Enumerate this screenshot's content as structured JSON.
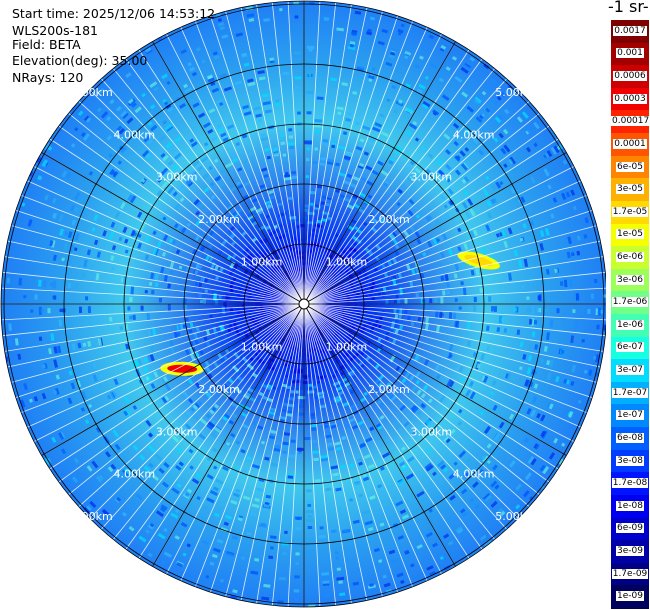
{
  "header": {
    "start_time": "Start time: 2025/12/06 14:53:12",
    "instrument": "WLS200s-181",
    "field": "Field: BETA",
    "elevation": "Elevation(deg): 35.00",
    "nrays": "NRays: 120"
  },
  "colorbar": {
    "title": "-1 sr-",
    "labels": [
      "0.0017",
      "0.001",
      "0.0006",
      "0.0003",
      "0.00017",
      "0.0001",
      "6e-05",
      "3e-05",
      "1.7e-05",
      "1e-05",
      "6e-06",
      "3e-06",
      "1.7e-06",
      "1e-06",
      "6e-07",
      "3e-07",
      "1.7e-07",
      "1e-07",
      "6e-08",
      "3e-08",
      "1.7e-08",
      "1e-08",
      "6e-09",
      "3e-09",
      "1.7e-09",
      "1e-09"
    ],
    "colors": [
      "#7f0000",
      "#a30000",
      "#cc0000",
      "#f20000",
      "#ff2400",
      "#ff5400",
      "#ff8500",
      "#ffb100",
      "#ffd900",
      "#f6ff00",
      "#c9ff2e",
      "#9dff5a",
      "#70ff87",
      "#43ffb4",
      "#17ffe1",
      "#00dcfe",
      "#00b0ff",
      "#0088ff",
      "#0060ff",
      "#003cff",
      "#0014ff",
      "#0000f1",
      "#0000cd",
      "#0000a8",
      "#000084",
      "#00005d"
    ]
  },
  "chart_data": {
    "type": "heatmap",
    "projection": "polar-ppi",
    "field": "BETA",
    "elevation_deg": 35.0,
    "n_rays": 120,
    "range_rings_km": [
      1.0,
      2.0,
      3.0,
      4.0,
      5.0
    ],
    "ring_labels": [
      "1.00km",
      "2.00km",
      "3.00km",
      "4.00km",
      "5.00km"
    ],
    "max_range_km": 5.0,
    "scale": "log",
    "value_range": [
      1e-09,
      0.0017
    ],
    "features": [
      {
        "description": "strong return patch",
        "azimuth_deg": 242,
        "range_km": 2.3,
        "value": 0.0003
      },
      {
        "description": "moderate return patch",
        "azimuth_deg": 76,
        "range_km": 3.0,
        "value": 1.7e-05
      }
    ]
  }
}
